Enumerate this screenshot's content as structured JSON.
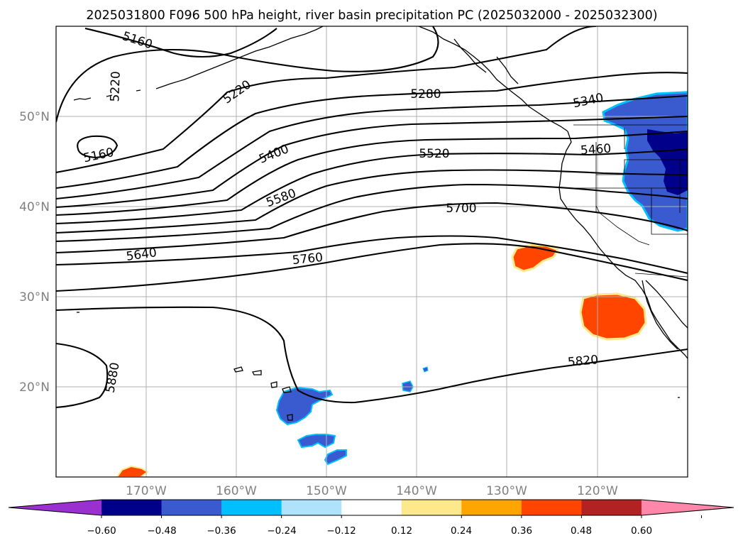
{
  "title": "2025031800 F096 500 hPa height, river basin precipitation PC (2025032000 - 2025032300)",
  "map": {
    "projection": "PlateCarree",
    "extent_lon": [
      -180,
      -110
    ],
    "extent_lat": [
      10,
      60
    ],
    "lon_ticks": [
      "170°W",
      "160°W",
      "150°W",
      "140°W",
      "130°W",
      "120°W"
    ],
    "lat_ticks": [
      "20°N",
      "30°N",
      "40°N",
      "50°N"
    ],
    "grid": true,
    "grid_color": "#b0b0b0",
    "tick_label_color": "#808080"
  },
  "contours": {
    "variable": "500 hPa height",
    "units": "m",
    "interval": 60,
    "labels": [
      "5160",
      "5220",
      "5160",
      "5220",
      "5280",
      "5340",
      "5400",
      "5460",
      "5520",
      "5580",
      "5640",
      "5700",
      "5760",
      "5820",
      "5880"
    ]
  },
  "colorbar": {
    "ticks": [
      "−0.60",
      "−0.48",
      "−0.36",
      "−0.24",
      "−0.12",
      "0.12",
      "0.24",
      "0.36",
      "0.48",
      "0.60"
    ],
    "colors": [
      "#9b30d0",
      "#00008b",
      "#3a5bcf",
      "#00bfff",
      "#aee3fb",
      "#ffffff",
      "#fde98c",
      "#ffa500",
      "#ff4500",
      "#b22222",
      "#ff88aa"
    ],
    "extend": "both"
  },
  "precip_patches": [
    {
      "region": "Pacific Northwest",
      "sign": "negative",
      "colors": [
        "#3a5bcf",
        "#00008b"
      ]
    },
    {
      "region": "Hawaii",
      "sign": "negative",
      "colors": [
        "#3a5bcf"
      ]
    },
    {
      "region": "off California",
      "sign": "positive",
      "colors": [
        "#ff4500"
      ]
    },
    {
      "region": "Baja California",
      "sign": "positive",
      "colors": [
        "#ff4500"
      ]
    },
    {
      "region": "southwest corner",
      "sign": "positive",
      "colors": [
        "#ff4500"
      ]
    }
  ]
}
